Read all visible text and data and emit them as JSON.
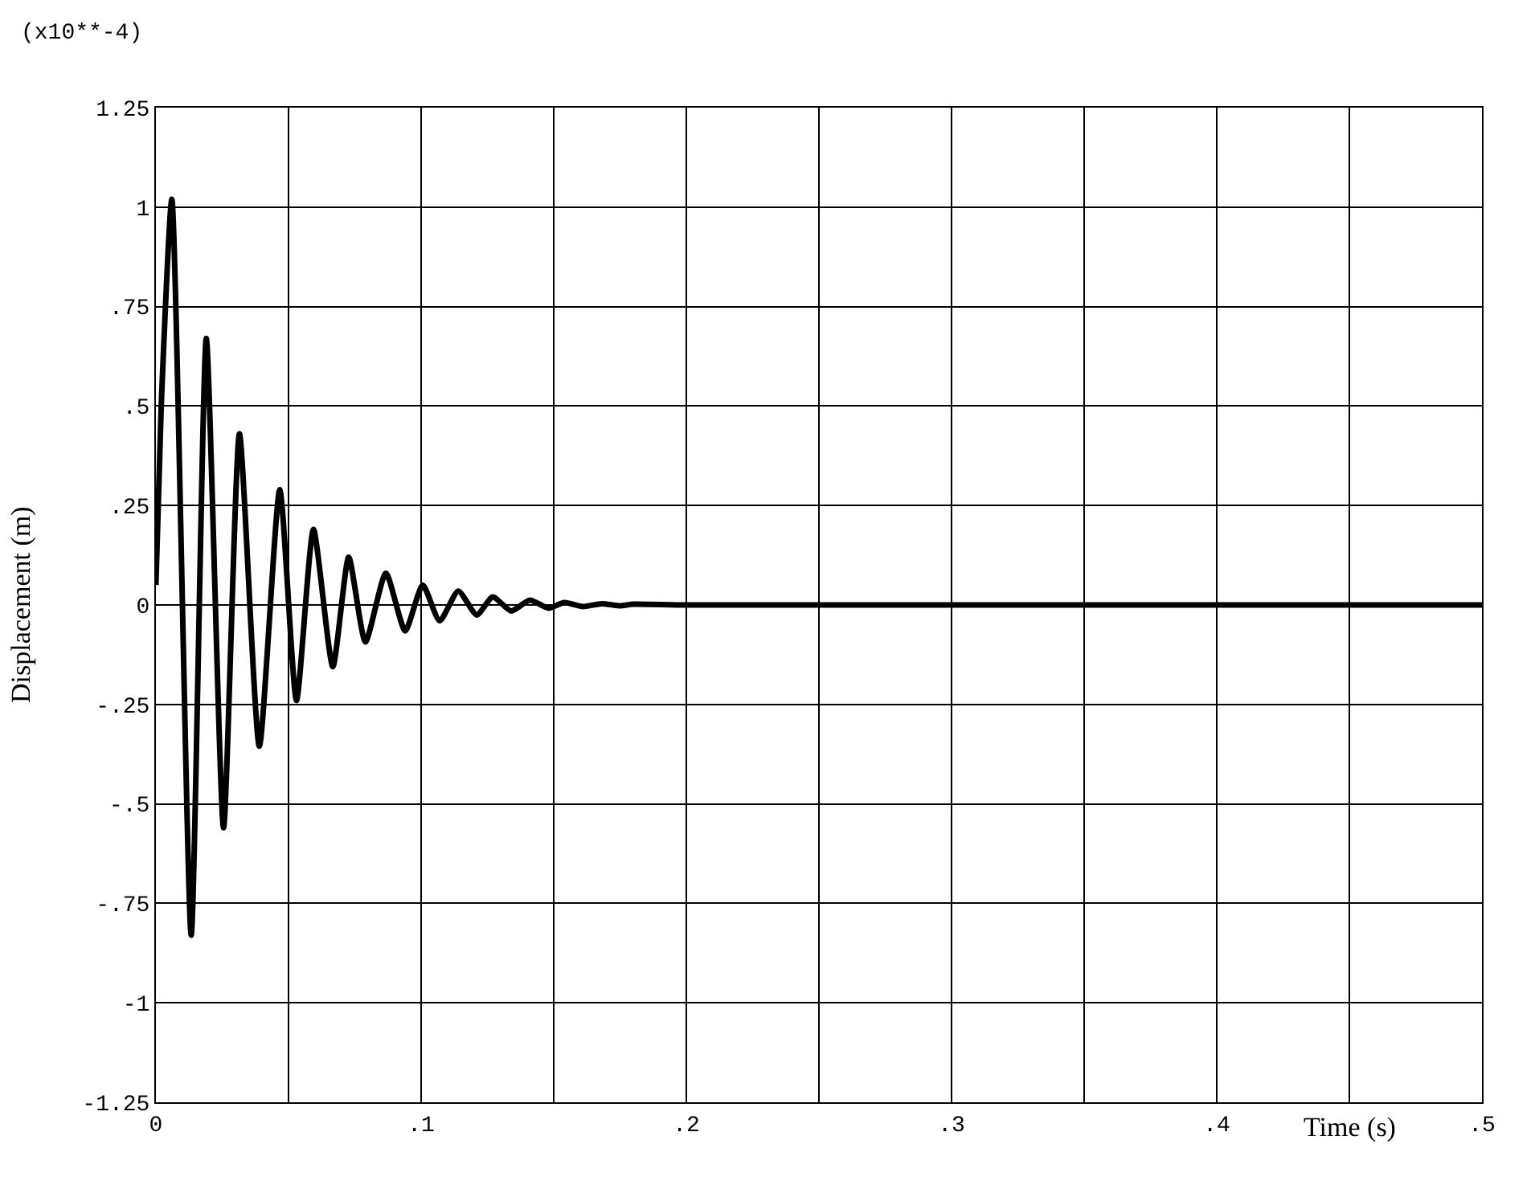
{
  "chart_data": {
    "type": "line",
    "xlabel": "Time (s)",
    "ylabel": "Displacement (m)",
    "annotations": [
      "(x10**-4)"
    ],
    "x": [
      0,
      0.002,
      0.006,
      0.0133,
      0.019,
      0.0255,
      0.0315,
      0.039,
      0.0467,
      0.053,
      0.0594,
      0.0667,
      0.0727,
      0.079,
      0.0867,
      0.094,
      0.1006,
      0.107,
      0.114,
      0.121,
      0.127,
      0.134,
      0.141,
      0.148,
      0.154,
      0.161,
      0.168,
      0.175,
      0.18,
      0.2,
      0.5
    ],
    "series": [
      {
        "color": "#000000",
        "values": [
          0.05,
          0.5,
          1.02,
          -0.83,
          0.67,
          -0.56,
          0.43,
          -0.355,
          0.29,
          -0.24,
          0.19,
          -0.155,
          0.12,
          -0.093,
          0.08,
          -0.065,
          0.05,
          -0.04,
          0.035,
          -0.025,
          0.02,
          -0.015,
          0.012,
          -0.008,
          0.006,
          -0.004,
          0.003,
          -0.002,
          0.002,
          0,
          0
        ]
      }
    ],
    "xlim": [
      0,
      0.5
    ],
    "ylim": [
      -1.25,
      1.25
    ],
    "xticks": [
      {
        "value": 0,
        "label": "0"
      },
      {
        "value": 0.05,
        "label": null
      },
      {
        "value": 0.1,
        "label": ".1"
      },
      {
        "value": 0.15,
        "label": null
      },
      {
        "value": 0.2,
        "label": ".2"
      },
      {
        "value": 0.25,
        "label": null
      },
      {
        "value": 0.3,
        "label": ".3"
      },
      {
        "value": 0.35,
        "label": null
      },
      {
        "value": 0.4,
        "label": ".4"
      },
      {
        "value": 0.45,
        "label": null
      },
      {
        "value": 0.5,
        "label": ".5"
      }
    ],
    "yticks": [
      {
        "value": 1.25,
        "label": "1.25"
      },
      {
        "value": 1,
        "label": "1"
      },
      {
        "value": 0.75,
        "label": ".75"
      },
      {
        "value": 0.5,
        "label": ".5"
      },
      {
        "value": 0.25,
        "label": ".25"
      },
      {
        "value": 0,
        "label": "0"
      },
      {
        "value": -0.25,
        "label": "-.25"
      },
      {
        "value": -0.5,
        "label": "-.5"
      },
      {
        "value": -0.75,
        "label": "-.75"
      },
      {
        "value": -1,
        "label": "-1"
      },
      {
        "value": -1.25,
        "label": "-1.25"
      }
    ],
    "grid": true,
    "marker": "none",
    "line_style": "solid",
    "legend": false
  }
}
